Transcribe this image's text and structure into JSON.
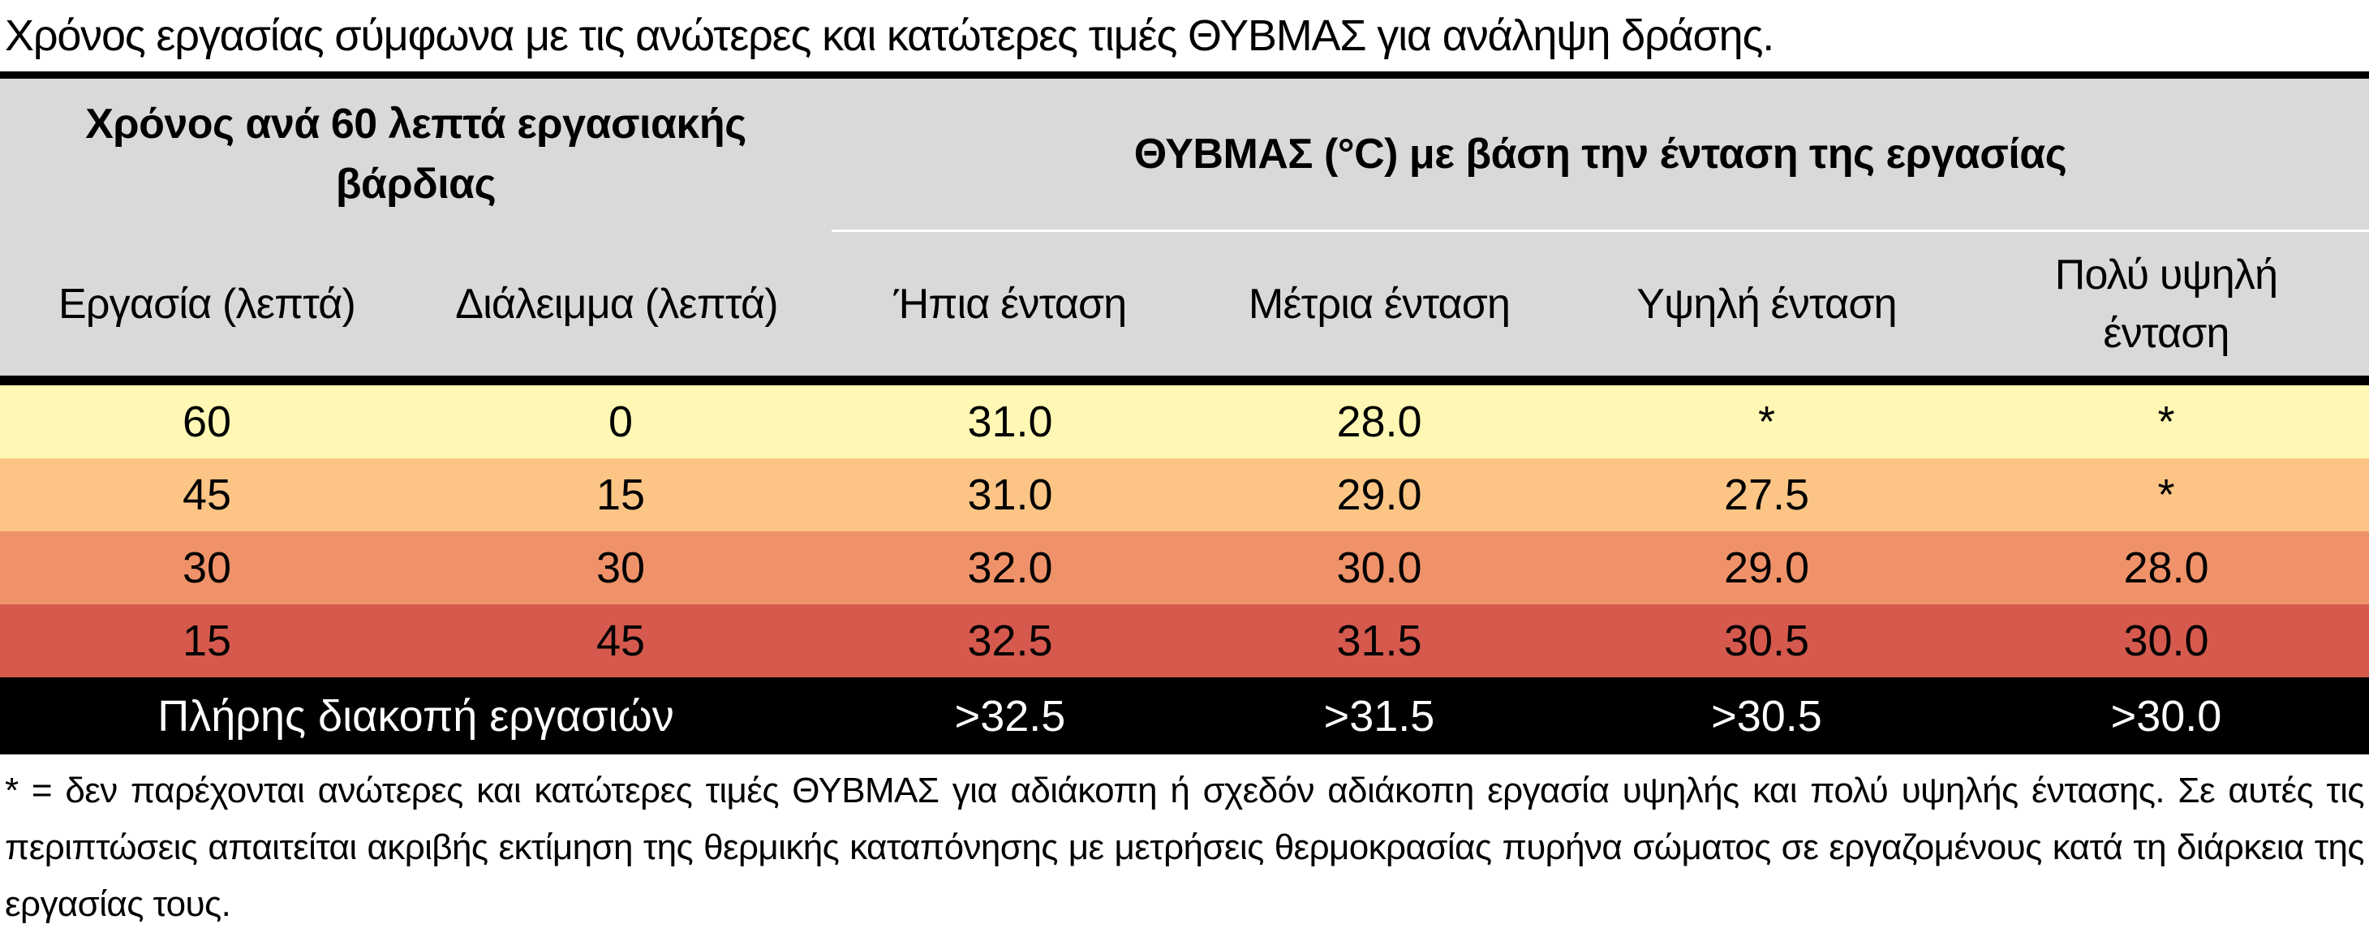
{
  "title": "Χρόνος εργασίας σύμφωνα με τις ανώτερες και κατώτερες τιμές ΘΥΒΜΑΣ για ανάληψη δράσης.",
  "header": {
    "time_group": "Χρόνος ανά 60 λεπτά εργασιακής βάρδιας",
    "wbgt_group": "ΘΥΒΜΑΣ (°C) με βάση την ένταση της εργασίας",
    "work": "Εργασία (λεπτά)",
    "break": "Διάλειμμα (λεπτά)",
    "light": "Ήπια ένταση",
    "moderate": "Μέτρια ένταση",
    "high": "Υψηλή ένταση",
    "very_high": "Πολύ υψηλή ένταση"
  },
  "rows": [
    {
      "work": "60",
      "break": "0",
      "light": "31.0",
      "moderate": "28.0",
      "high": "*",
      "very_high": "*",
      "color": "#fff8b4"
    },
    {
      "work": "45",
      "break": "15",
      "light": "31.0",
      "moderate": "29.0",
      "high": "27.5",
      "very_high": "*",
      "color": "#fdc585"
    },
    {
      "work": "30",
      "break": "30",
      "light": "32.0",
      "moderate": "30.0",
      "high": "29.0",
      "very_high": "28.0",
      "color": "#f09269"
    },
    {
      "work": "15",
      "break": "45",
      "light": "32.5",
      "moderate": "31.5",
      "high": "30.5",
      "very_high": "30.0",
      "color": "#d5594d"
    }
  ],
  "stop_row": {
    "label": "Πλήρης διακοπή εργασιών",
    "light": ">32.5",
    "moderate": ">31.5",
    "high": ">30.5",
    "very_high": ">30.0"
  },
  "footnote": "* = δεν παρέχονται ανώτερες και κατώτερες τιμές ΘΥΒΜΑΣ για αδιάκοπη ή σχεδόν αδιάκοπη εργασία υψηλής και πολύ υψηλής έντασης. Σε αυτές τις περιπτώσεις απαιτείται ακριβής εκτίμηση της θερμικής καταπόνησης με μετρήσεις θερμοκρασίας πυρήνα σώματος σε εργαζομένους κατά τη διάρκεια της εργασίας τους."
}
